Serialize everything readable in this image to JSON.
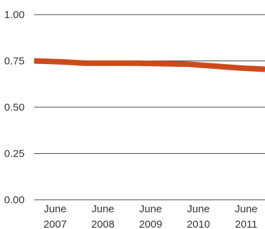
{
  "chart_data": {
    "type": "line",
    "title": "",
    "xlabel": "",
    "ylabel": "",
    "categories": [
      [
        "June",
        "2007"
      ],
      [
        "June",
        "2008"
      ],
      [
        "June",
        "2009"
      ],
      [
        "June",
        "2010"
      ],
      [
        "June",
        "2011"
      ]
    ],
    "x": [
      2007.0,
      2007.5,
      2008.0,
      2008.5,
      2009.0,
      2009.5,
      2010.0,
      2010.5,
      2011.0,
      2011.5
    ],
    "series": [
      {
        "values": [
          0.75,
          0.745,
          0.738,
          0.738,
          0.738,
          0.735,
          0.732,
          0.722,
          0.712,
          0.705
        ],
        "color": "#cc4a1c"
      }
    ],
    "ylim": [
      0,
      1
    ],
    "yticks": [
      "0.00",
      "0.25",
      "0.50",
      "0.75",
      "1.00"
    ],
    "ytick_values": [
      0,
      0.25,
      0.5,
      0.75,
      1.0
    ],
    "grid": true,
    "legend": "none"
  }
}
